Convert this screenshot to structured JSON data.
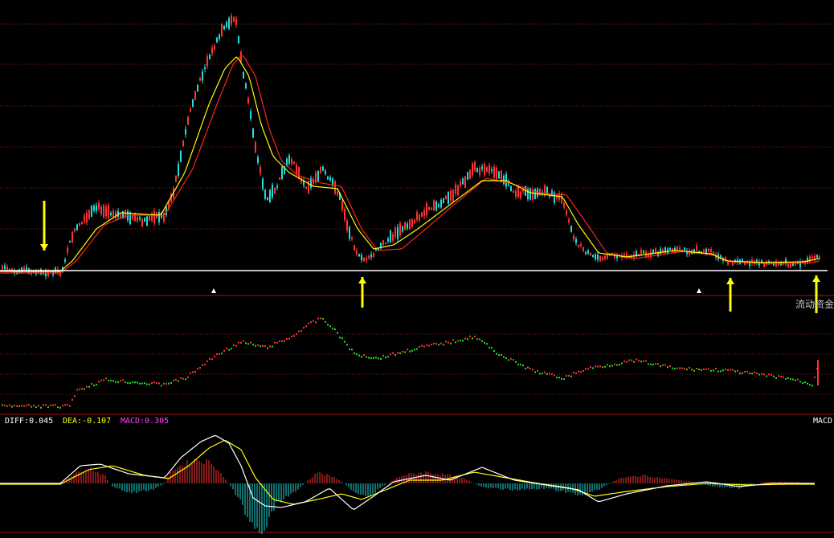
{
  "chart_data": [
    {
      "type": "candlestick",
      "panel": "price",
      "overlays": [
        "short moving average (yellow)",
        "long moving average (red)"
      ],
      "colors": {
        "up": "#ff3333",
        "down": "#22dddd",
        "ma_short": "#ffff00",
        "ma_long": "#ff2222",
        "baseline": "#ffffff",
        "arrows": "#ffff00",
        "grid": "#8a1a1a"
      },
      "markers": {
        "down_arrows": 1,
        "up_arrows": 3,
        "triangles": 2
      }
    },
    {
      "type": "dot-line",
      "panel": "flow",
      "label": "流动资金",
      "colors": {
        "positive": "#ff3333",
        "negative": "#22dd22"
      }
    },
    {
      "type": "macd",
      "panel": "macd",
      "indicator_name": "MACD",
      "values": {
        "DIFF": 0.045,
        "DEA": -0.107,
        "MACD": 0.305
      },
      "labels": {
        "diff": "DIFF:0.045",
        "dea": "DEA:-0.107",
        "macd": "MACD:0.305"
      },
      "colors": {
        "diff": "#ffffff",
        "dea": "#ffff00",
        "macd_label": "#ff44ff",
        "hist_pos": "#ff3333",
        "hist_neg": "#22dddd"
      }
    }
  ]
}
